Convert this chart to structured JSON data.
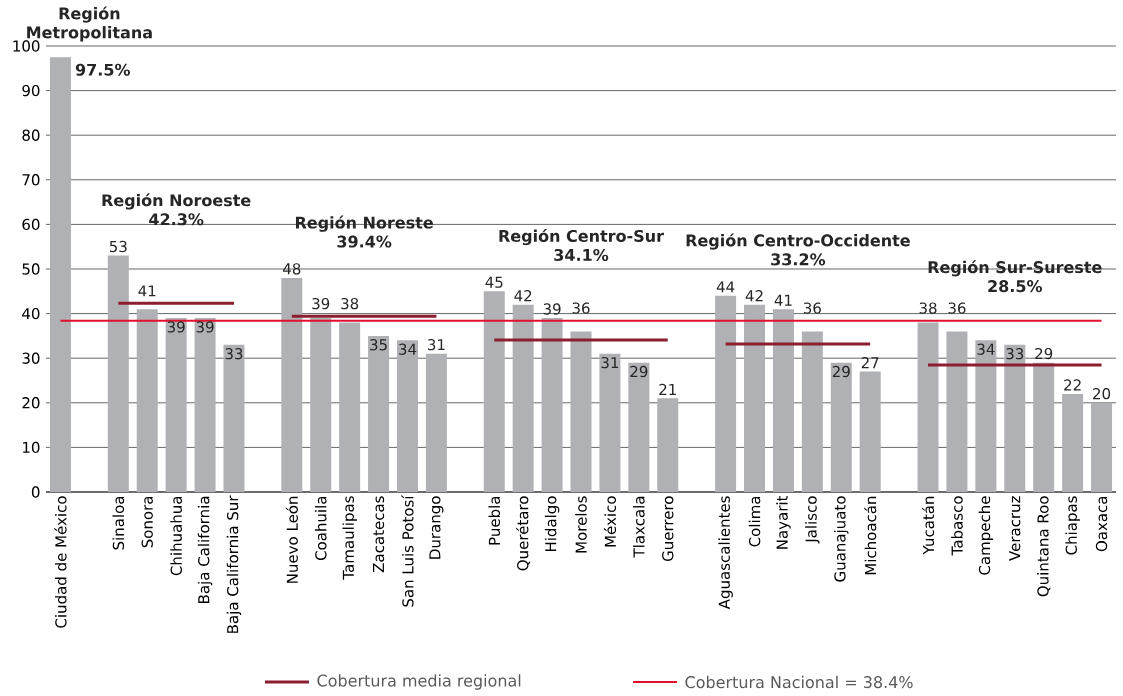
{
  "chart_data": {
    "type": "bar",
    "categories": [
      "Ciudad de México",
      null,
      "Sinaloa",
      "Sonora",
      "Chihuahua",
      "Baja California",
      "Baja California Sur",
      null,
      "Nuevo León",
      "Coahuila",
      "Tamaulipas",
      "Zacatecas",
      "San Luis Potosí",
      "Durango",
      null,
      "Puebla",
      "Querétaro",
      "Hidalgo",
      "Morelos",
      "México",
      "Tlaxcala",
      "Guerrero",
      null,
      "Aguascalientes",
      "Colima",
      "Nayarit",
      "Jalisco",
      "Guanajuato",
      "Michoacán",
      null,
      "Yucatán",
      "Tabasco",
      "Campeche",
      "Veracruz",
      "Quintana Roo",
      "Chiapas",
      "Oaxaca"
    ],
    "series": [
      {
        "color": "#b0b1b5",
        "values": [
          97.5,
          null,
          53,
          41,
          39,
          39,
          33,
          null,
          48,
          39,
          38,
          35,
          34,
          31,
          null,
          45,
          42,
          39,
          36,
          31,
          29,
          21,
          null,
          44,
          42,
          41,
          36,
          29,
          27,
          null,
          38,
          36,
          34,
          33,
          29,
          22,
          20
        ],
        "value_labels": [
          null,
          null,
          "53",
          "41",
          "39",
          "39",
          "33",
          null,
          "48",
          "39",
          "38",
          "35",
          "34",
          "31",
          null,
          "45",
          "42",
          "39",
          "36",
          "31",
          "29",
          "21",
          null,
          "44",
          "42",
          "41",
          "36",
          "29",
          "27",
          null,
          "38",
          "36",
          "34",
          "33",
          "29",
          "22",
          "20"
        ]
      },
      {
        "type": "line",
        "name": "Cobertura media regional",
        "color": "#8b1e2f",
        "values": [
          null,
          null,
          42.3,
          42.3,
          42.3,
          42.3,
          42.3,
          null,
          39.4,
          39.4,
          39.4,
          39.4,
          39.4,
          39.4,
          null,
          34.1,
          34.1,
          34.1,
          34.1,
          34.1,
          34.1,
          34.1,
          null,
          33.2,
          33.2,
          33.2,
          33.2,
          33.2,
          33.2,
          null,
          28.5,
          28.5,
          28.5,
          28.5,
          28.5,
          28.5,
          28.5
        ]
      },
      {
        "type": "line",
        "name": "Cobertura Nacional = 38.4%",
        "color": "#e0102f",
        "values": [
          38.4,
          38.4,
          38.4,
          38.4,
          38.4,
          38.4,
          38.4,
          38.4,
          38.4,
          38.4,
          38.4,
          38.4,
          38.4,
          38.4,
          38.4,
          38.4,
          38.4,
          38.4,
          38.4,
          38.4,
          38.4,
          38.4,
          38.4,
          38.4,
          38.4,
          38.4,
          38.4,
          38.4,
          38.4,
          38.4,
          38.4,
          38.4,
          38.4,
          38.4,
          38.4,
          38.4,
          38.4
        ]
      }
    ],
    "annotations": [
      "Región Metropolitana",
      "97.5%",
      "Región Noroeste",
      "42.3%",
      "Región Noreste",
      "39.4%",
      "Región Centro-Sur",
      "34.1%",
      "Región Centro-Occidente",
      "33.2%",
      "Región Sur-Sureste",
      "28.5%"
    ],
    "ylim": [
      0,
      100
    ],
    "yticks": [
      0,
      10,
      20,
      30,
      40,
      50,
      60,
      70,
      80,
      90,
      100
    ],
    "grid": "y",
    "legend": "bottom",
    "marker": "none",
    "line_style": "solid"
  }
}
